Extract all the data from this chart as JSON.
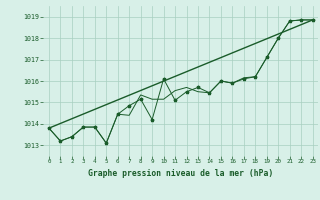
{
  "title": "Graphe pression niveau de la mer (hPa)",
  "background_color": "#d8f0e8",
  "grid_color": "#a8cfc0",
  "line_color": "#1a5c2a",
  "xlim": [
    -0.5,
    23.5
  ],
  "ylim": [
    1012.5,
    1019.5
  ],
  "yticks": [
    1013,
    1014,
    1015,
    1016,
    1017,
    1018,
    1019
  ],
  "xticks": [
    0,
    1,
    2,
    3,
    4,
    5,
    6,
    7,
    8,
    9,
    10,
    11,
    12,
    13,
    14,
    15,
    16,
    17,
    18,
    19,
    20,
    21,
    22,
    23
  ],
  "series1": [
    1013.8,
    1013.2,
    1013.4,
    1013.85,
    1013.85,
    1013.1,
    1014.45,
    1014.85,
    1015.15,
    1014.2,
    1016.1,
    1015.1,
    1015.5,
    1015.7,
    1015.45,
    1016.0,
    1015.9,
    1016.1,
    1016.2,
    1017.1,
    1018.0,
    1018.8,
    1018.85,
    1018.85
  ],
  "series2": [
    1013.8,
    1013.2,
    1013.4,
    1013.85,
    1013.85,
    1013.1,
    1014.45,
    1014.4,
    1015.35,
    1015.15,
    1015.15,
    1015.55,
    1015.7,
    1015.5,
    1015.45,
    1016.0,
    1015.9,
    1016.15,
    1016.2,
    1017.1,
    1018.0,
    1018.8,
    1018.85,
    1018.85
  ],
  "trend_x": [
    0,
    23
  ],
  "trend_y": [
    1013.8,
    1018.85
  ]
}
